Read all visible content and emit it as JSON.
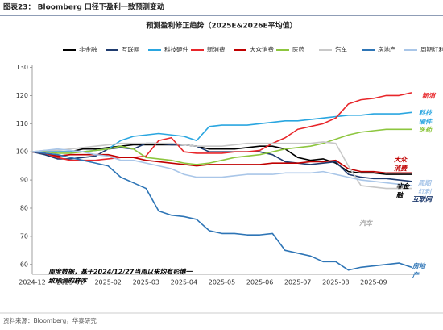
{
  "header": "图表23： Bloomberg 口径下盈利一致预测变动",
  "source": "资料来源：Bloomberg，华泰研究",
  "chart_data": {
    "type": "line",
    "title": "预测盈利修正趋势（2025E&2026E平均值）",
    "categories": [
      "2024-12",
      null,
      null,
      "2025-01",
      null,
      null,
      "2025-02",
      null,
      null,
      "2025-03",
      null,
      null,
      "2025-04",
      null,
      null,
      "2025-05",
      null,
      null,
      "2025-06",
      null,
      null,
      "2025-07",
      null,
      null,
      "2025-08",
      null,
      null,
      "2025-09",
      null,
      null,
      null
    ],
    "ylim": [
      56.5,
      131
    ],
    "yticks": [
      60,
      70,
      80,
      90,
      100,
      110,
      120,
      130
    ],
    "grid": false,
    "legend": "top",
    "series": [
      {
        "name": "非金融",
        "color": "#000000",
        "values": [
          100,
          100,
          100,
          100,
          101,
          101,
          101.5,
          102,
          102.5,
          102.5,
          102.5,
          102.5,
          102.5,
          102,
          101,
          101,
          101,
          101.5,
          102,
          102,
          101,
          98,
          97,
          97.5,
          96,
          93,
          92.5,
          92.5,
          92,
          92,
          92
        ]
      },
      {
        "name": "互联网",
        "color": "#1f3b6e",
        "values": [
          100,
          99,
          97.5,
          97.5,
          98,
          98.5,
          101,
          101.5,
          101,
          103,
          103,
          102.5,
          102.5,
          102,
          100,
          100,
          100,
          100,
          100,
          99,
          96.5,
          96,
          95.5,
          96,
          96.5,
          92,
          91,
          90.5,
          90.5,
          90,
          89.5
        ]
      },
      {
        "name": "科技硬件",
        "color": "#2aa6e0",
        "values": [
          100,
          100,
          100,
          100,
          100,
          100.5,
          101,
          104,
          105.5,
          106,
          106.5,
          106,
          105.5,
          104,
          109,
          109.5,
          109.5,
          109.5,
          110,
          110.5,
          111,
          111,
          111.5,
          112,
          112.5,
          113,
          113,
          113.5,
          113.5,
          113.5,
          114
        ]
      },
      {
        "name": "新消费",
        "color": "#e8262a",
        "values": [
          100,
          99.5,
          98,
          97,
          97,
          97,
          97.5,
          98,
          98,
          98.5,
          104,
          105,
          100,
          99.5,
          99.5,
          99.5,
          100,
          100,
          100.5,
          103,
          105,
          108,
          109,
          110,
          112,
          117,
          118.5,
          119,
          120,
          120,
          121
        ]
      },
      {
        "name": "大众消费",
        "color": "#c00000",
        "values": [
          100,
          99.5,
          98.5,
          99,
          99,
          99,
          99,
          98,
          98,
          97,
          96.5,
          96,
          95.5,
          95,
          95.5,
          95.5,
          95.5,
          95.5,
          95.5,
          96,
          96,
          96,
          96.5,
          96.5,
          97,
          94,
          93,
          93,
          92.5,
          92.5,
          92.5
        ]
      },
      {
        "name": "医药",
        "color": "#8dc63f",
        "values": [
          100,
          100,
          99.5,
          99.5,
          100,
          100.5,
          101,
          102,
          101,
          98,
          97.5,
          97,
          96,
          95.5,
          96,
          97,
          98,
          98.5,
          99,
          100,
          101,
          101.5,
          102,
          103,
          104.5,
          106,
          107,
          107.5,
          108,
          108,
          108
        ]
      },
      {
        "name": "汽车",
        "color": "#c8c8c8",
        "values": [
          100,
          100.5,
          100.5,
          101,
          101.5,
          102,
          102.5,
          103,
          103,
          103,
          103,
          103,
          102.5,
          102,
          102,
          102,
          102.5,
          103,
          103,
          103,
          103,
          103,
          103,
          103.5,
          103,
          95,
          88,
          87.5,
          87,
          87,
          87
        ]
      },
      {
        "name": "房地产",
        "color": "#2e75b6",
        "values": [
          100,
          99.5,
          99,
          98,
          97,
          96,
          95,
          91,
          89,
          87,
          79,
          77.5,
          77,
          76,
          72,
          71,
          71,
          70.5,
          70.5,
          71,
          65,
          64,
          63,
          61,
          61,
          58,
          59,
          59.5,
          60,
          60.5,
          59
        ]
      },
      {
        "name": "周期红利",
        "color": "#a9c6e8",
        "values": [
          100,
          100.5,
          101,
          100.5,
          100,
          99,
          98.5,
          97,
          97,
          96,
          95,
          94,
          92,
          91,
          91,
          91,
          91.5,
          92,
          92,
          92,
          92.5,
          92.5,
          92.5,
          93,
          92,
          91,
          90,
          89.5,
          89,
          88.5,
          88
        ]
      }
    ],
    "annotations": [
      {
        "text": [
          "新消"
        ],
        "color": "#e8262a"
      },
      {
        "text": [
          "科技",
          "硬件"
        ],
        "color": "#2aa6e0"
      },
      {
        "text": [
          "医药"
        ],
        "color": "#8dc63f"
      },
      {
        "text": [
          "大众",
          "消费"
        ],
        "color": "#c00000"
      },
      {
        "text": [
          "非金",
          "融"
        ],
        "color": "#000000"
      },
      {
        "text": [
          "周期",
          "红利"
        ],
        "color": "#a9c6e8"
      },
      {
        "text": [
          "互联网"
        ],
        "color": "#1f3b6e"
      },
      {
        "text": [
          "汽车"
        ],
        "color": "#aaaaaa"
      },
      {
        "text": [
          "房地",
          "产"
        ],
        "color": "#2e75b6"
      },
      {
        "text": [
          "周度数据，基于2024/12/27当周以来均有彭博一",
          "致预测的样本"
        ],
        "color": "#000000"
      }
    ]
  }
}
